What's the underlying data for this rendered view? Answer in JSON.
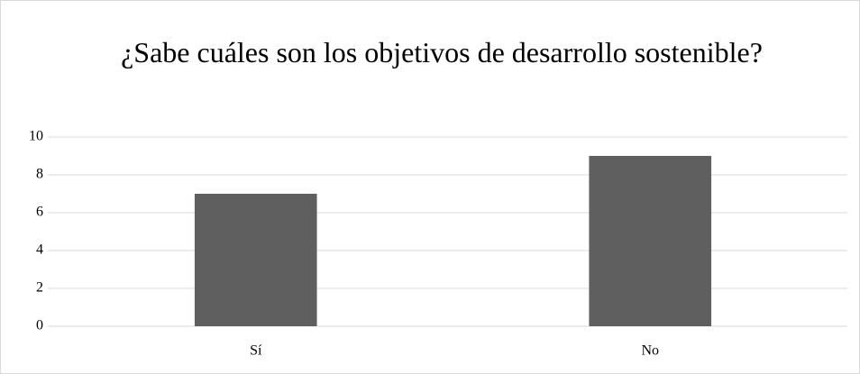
{
  "chart_data": {
    "type": "bar",
    "title": "¿Sabe cuáles son los objetivos de desarrollo sostenible?",
    "categories": [
      "Sí",
      "No"
    ],
    "values": [
      7,
      9
    ],
    "color": "#5f5f5f",
    "ylim": [
      0,
      10
    ],
    "yticks": [
      0,
      2,
      4,
      6,
      8,
      10
    ],
    "grid": true
  }
}
